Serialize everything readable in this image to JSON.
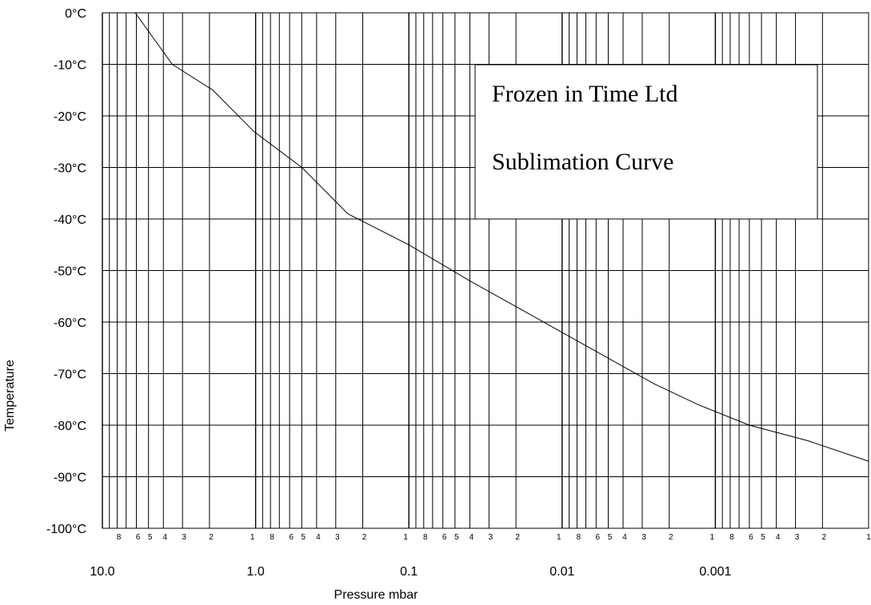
{
  "chart_data": {
    "type": "line",
    "xlabel": "Pressure mbar",
    "ylabel": "Temperature",
    "x_scale": "log-reversed",
    "xlim": [
      10,
      0.0001
    ],
    "ylim": [
      -100,
      0
    ],
    "y_ticks": [
      {
        "value": 0,
        "label": "0°C"
      },
      {
        "value": -10,
        "label": "-10°C"
      },
      {
        "value": -20,
        "label": "-20°C"
      },
      {
        "value": -30,
        "label": "-30°C"
      },
      {
        "value": -40,
        "label": "-40°C"
      },
      {
        "value": -50,
        "label": "-50°C"
      },
      {
        "value": -60,
        "label": "-60°C"
      },
      {
        "value": -70,
        "label": "-70°C"
      },
      {
        "value": -80,
        "label": "-80°C"
      },
      {
        "value": -90,
        "label": "-90°C"
      },
      {
        "value": -100,
        "label": "-100°C"
      }
    ],
    "x_ticks": [
      {
        "value": 10,
        "label": "10.0"
      },
      {
        "value": 1,
        "label": "1.0"
      },
      {
        "value": 0.1,
        "label": "0.1"
      },
      {
        "value": 0.01,
        "label": "0.01"
      },
      {
        "value": 0.001,
        "label": "0.001"
      }
    ],
    "minor_tick_labels": [
      "8",
      "6",
      "5",
      "4",
      "3",
      "2",
      "1"
    ],
    "grid": true,
    "series": [
      {
        "x": [
          6.1,
          3.5,
          1.9,
          1.03,
          0.5,
          0.25,
          0.1,
          0.04,
          0.02,
          0.01,
          0.005,
          0.0025,
          0.0013,
          0.0006,
          0.00025,
          0.0001
        ],
        "y": [
          0,
          -10,
          -15,
          -23,
          -30,
          -39,
          -45,
          -52,
          -57,
          -62,
          -67,
          -72,
          -76,
          -80,
          -83,
          -87
        ]
      }
    ],
    "annotation": {
      "line1": "Frozen in Time Ltd",
      "line2": "Sublimation Curve"
    }
  }
}
